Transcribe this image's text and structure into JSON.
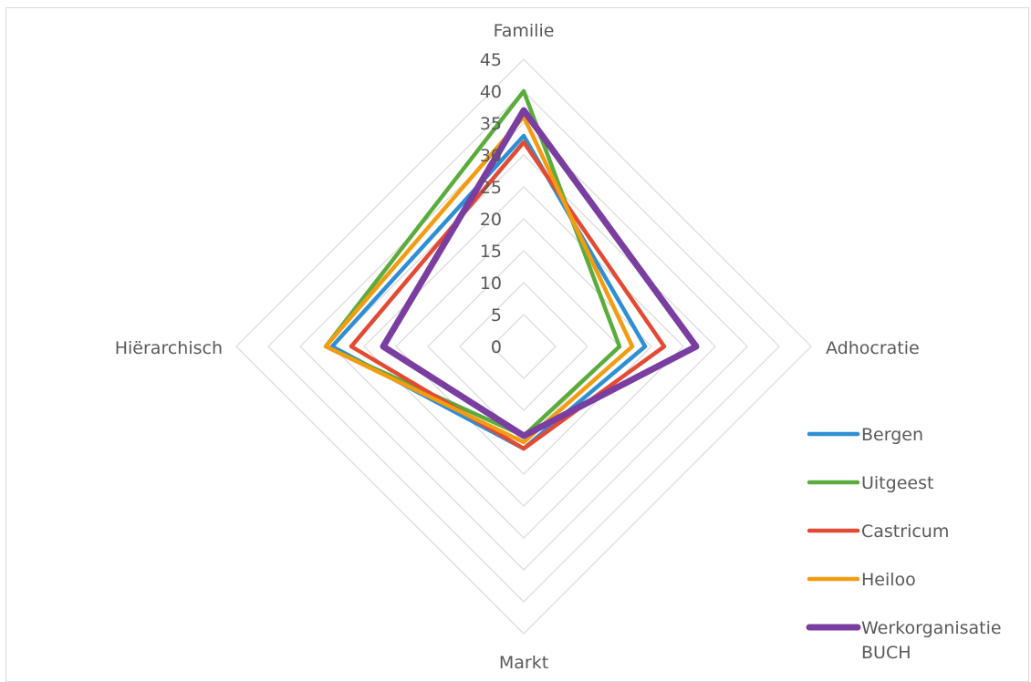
{
  "chart_data": {
    "type": "radar",
    "categories": [
      "Familie",
      "Adhocratie",
      "Markt",
      "Hiërarchisch"
    ],
    "rlim": [
      0,
      45
    ],
    "ticks": [
      0,
      5,
      10,
      15,
      20,
      25,
      30,
      35,
      40,
      45
    ],
    "grid": true,
    "legend_position": "right-bottom",
    "legend_lines": [
      [
        "Bergen"
      ],
      [
        "Uitgeest"
      ],
      [
        "Castricum"
      ],
      [
        "Heiloo"
      ],
      [
        "Werkorganisatie",
        "BUCH"
      ]
    ],
    "series": [
      {
        "name": "Bergen",
        "color": "#2e8fd4",
        "values": [
          33,
          19,
          16,
          30
        ]
      },
      {
        "name": "Uitgeest",
        "color": "#5aac3c",
        "values": [
          40,
          15,
          14,
          31
        ]
      },
      {
        "name": "Castricum",
        "color": "#e34a33",
        "values": [
          32,
          22,
          16,
          27
        ]
      },
      {
        "name": "Heiloo",
        "color": "#f39c12",
        "values": [
          36,
          17,
          15,
          31
        ]
      },
      {
        "name": "Werkorganisatie BUCH",
        "color": "#7a3ea1",
        "values": [
          37,
          27,
          14,
          22
        ]
      }
    ]
  }
}
